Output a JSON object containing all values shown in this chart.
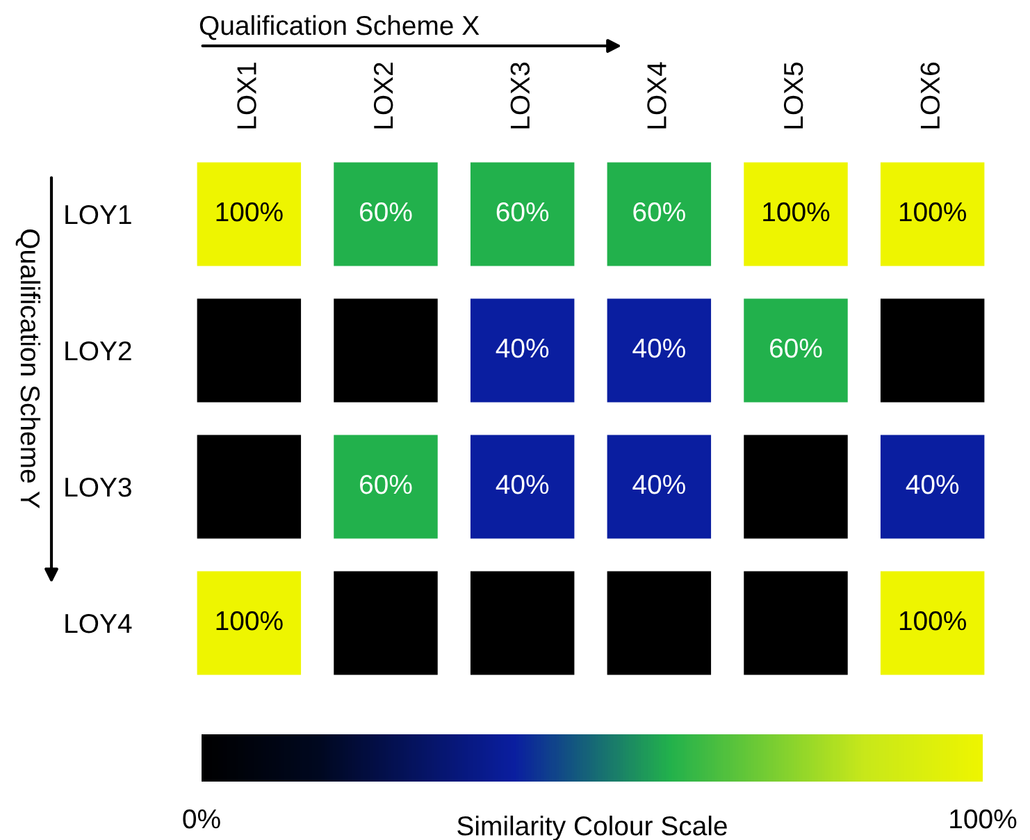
{
  "chart_data": {
    "type": "heatmap",
    "xlabel": "Qualification Scheme X",
    "ylabel": "Qualification Scheme Y",
    "clabel": "Similarity Colour Scale",
    "categories": [
      "LOX1",
      "LOX2",
      "LOX3",
      "LOX4",
      "LOX5",
      "LOX6"
    ],
    "y_categories": [
      "LOY1",
      "LOY2",
      "LOY3",
      "LOY4"
    ],
    "cells": [
      [
        100,
        60,
        60,
        60,
        100,
        100
      ],
      [
        0,
        0,
        40,
        40,
        60,
        0
      ],
      [
        0,
        60,
        40,
        40,
        0,
        40
      ],
      [
        100,
        0,
        0,
        0,
        0,
        100
      ]
    ],
    "cell_labels": [
      [
        "100%",
        "60%",
        "60%",
        "60%",
        "100%",
        "100%"
      ],
      [
        null,
        null,
        "40%",
        "40%",
        "60%",
        null
      ],
      [
        null,
        "60%",
        "40%",
        "40%",
        null,
        "40%"
      ],
      [
        "100%",
        null,
        null,
        null,
        null,
        "100%"
      ]
    ],
    "clim": [
      0,
      100
    ],
    "cticks": [
      {
        "value": 0,
        "label": "0%"
      },
      {
        "value": 100,
        "label": "100%"
      }
    ]
  }
}
